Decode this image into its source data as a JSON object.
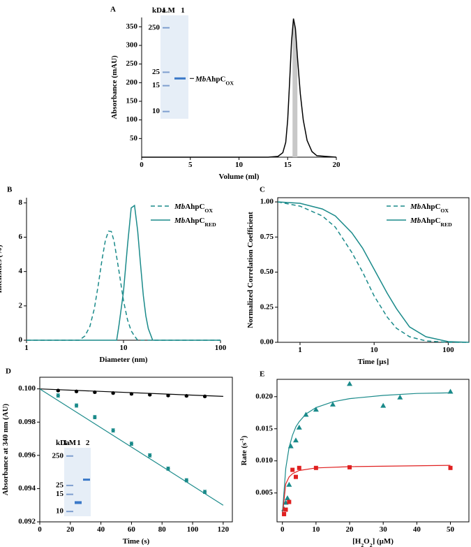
{
  "chart_data": [
    {
      "type": "line",
      "title": "A",
      "xlabel": "Volume (ml)",
      "ylabel": "Absorbance (mAU)",
      "xlim": [
        0,
        20
      ],
      "ylim": [
        0,
        375
      ],
      "xticks": [
        0,
        5,
        10,
        15,
        20
      ],
      "yticks": [
        50,
        100,
        150,
        200,
        250,
        300,
        350
      ],
      "frame": "axes",
      "highlight": [
        15.5,
        16
      ],
      "series": [
        {
          "color": "#000000",
          "x": [
            0,
            13,
            14,
            14.5,
            14.8,
            15,
            15.2,
            15.4,
            15.6,
            15.8,
            16,
            16.3,
            16.6,
            17,
            17.5,
            18,
            20
          ],
          "values": [
            0,
            0,
            2,
            12,
            40,
            100,
            200,
            310,
            372,
            345,
            270,
            170,
            100,
            45,
            15,
            4,
            0
          ]
        }
      ],
      "inset": {
        "labels": [
          "kDa",
          "LM",
          "1"
        ],
        "markers": [
          "250",
          "25",
          "15",
          "10"
        ],
        "annotation": [
          "Mb",
          "AhpC",
          "OX"
        ]
      }
    },
    {
      "type": "line",
      "title": "B",
      "xlabel": "Diameter (nm)",
      "ylabel": "Intensities (%)",
      "xscale": "log",
      "xlim": [
        1,
        100
      ],
      "ylim": [
        0,
        8.3
      ],
      "xticks": [
        1,
        10,
        100
      ],
      "yticks": [
        0,
        2,
        4,
        6,
        8
      ],
      "frame": "axes",
      "legend": "upper right",
      "series": [
        {
          "name": [
            "Mb",
            "AhpC",
            "OX"
          ],
          "color": "#1a8a8a",
          "dash": true,
          "x": [
            1,
            3.5,
            4,
            4.5,
            5,
            5.5,
            6,
            6.5,
            7,
            7.5,
            8,
            9,
            10,
            11,
            12,
            13,
            14,
            100
          ],
          "values": [
            0,
            0,
            0.25,
            0.8,
            1.84,
            3.24,
            4.69,
            5.81,
            6.35,
            6.33,
            5.76,
            4.0,
            2.3,
            1.18,
            0.55,
            0.24,
            0,
            0
          ]
        },
        {
          "name": [
            "Mb",
            "AhpC",
            "RED"
          ],
          "color": "#1a8a8a",
          "dash": false,
          "x": [
            1,
            8.5,
            9,
            10,
            11,
            12,
            13,
            14,
            15,
            16,
            17,
            18,
            20,
            100
          ],
          "values": [
            0,
            0,
            0.9,
            2.85,
            5.55,
            7.7,
            7.85,
            6.37,
            4.37,
            2.6,
            1.42,
            0.68,
            0,
            0
          ]
        }
      ]
    },
    {
      "type": "line",
      "title": "C",
      "xlabel": "Time [μs]",
      "ylabel": "Normalized Correlation Coefficient",
      "xscale": "log",
      "xlim": [
        0.5,
        190
      ],
      "ylim": [
        0,
        1.03
      ],
      "xticks": [
        1,
        10,
        100
      ],
      "yticks": [
        {
          "value": 0,
          "label": "0.00"
        },
        0.25,
        {
          "value": 0.5,
          "label": "0.50"
        },
        0.75,
        {
          "value": 1,
          "label": "1.00"
        }
      ],
      "frame": "box",
      "legend": "upper right",
      "series": [
        {
          "name": [
            "Mb",
            "AhpC",
            "OX"
          ],
          "color": "#1a8a8a",
          "dash": true,
          "x": [
            0.5,
            1,
            2,
            3,
            5,
            7,
            10,
            15,
            20,
            30,
            50,
            100,
            190
          ],
          "values": [
            1.0,
            0.97,
            0.9,
            0.82,
            0.64,
            0.5,
            0.33,
            0.18,
            0.1,
            0.04,
            0.01,
            0,
            0
          ]
        },
        {
          "name": [
            "Mb",
            "AhpC",
            "RED"
          ],
          "color": "#1a8a8a",
          "dash": false,
          "x": [
            0.5,
            1,
            2,
            3,
            5,
            7,
            10,
            15,
            20,
            30,
            50,
            100,
            190
          ],
          "values": [
            1.0,
            0.99,
            0.95,
            0.9,
            0.78,
            0.67,
            0.52,
            0.35,
            0.24,
            0.11,
            0.04,
            0.005,
            0
          ]
        }
      ]
    },
    {
      "type": "scatter",
      "title": "D",
      "xlabel": "Time (s)",
      "ylabel": "Absorbance at 340 nm (AU)",
      "xlim": [
        0,
        126
      ],
      "ylim": [
        0.092,
        0.1007
      ],
      "xticks": [
        0,
        20,
        40,
        60,
        80,
        100,
        120
      ],
      "yticks": [
        0.092,
        0.094,
        0.096,
        0.098,
        {
          "value": 0.1,
          "label": "0.100"
        }
      ],
      "frame": "box",
      "series": [
        {
          "color": "#000000",
          "marker": "circle",
          "x": [
            12,
            24,
            36,
            48,
            60,
            72,
            84,
            96,
            108
          ],
          "values": [
            0.0999,
            0.09985,
            0.0998,
            0.09975,
            0.0997,
            0.09965,
            0.0996,
            0.09958,
            0.09955
          ],
          "errors": [
            5e-05,
            5e-05,
            5e-05,
            5e-05,
            5e-05,
            5e-05,
            5e-05,
            5e-05,
            5e-05
          ],
          "fit": {
            "x": [
              0,
              120
            ],
            "values": [
              0.1,
              0.09955
            ]
          }
        },
        {
          "color": "#1a8a8a",
          "marker": "circle",
          "x": [
            12,
            24,
            36,
            48,
            60,
            72,
            84,
            96,
            108
          ],
          "values": [
            0.0996,
            0.099,
            0.0983,
            0.0975,
            0.0967,
            0.096,
            0.0952,
            0.0945,
            0.0938
          ],
          "errors": [
            0.0001,
            0.0001,
            0.0001,
            0.0001,
            0.0001,
            0.0001,
            0.0001,
            0.0001,
            0.0001
          ],
          "fit": {
            "x": [
              0,
              120
            ],
            "values": [
              0.1,
              0.093
            ]
          }
        }
      ],
      "inset": {
        "labels": [
          "kDa",
          "LM",
          "1",
          "2"
        ],
        "markers": [
          "250",
          "25",
          "15",
          "10"
        ]
      }
    },
    {
      "type": "scatter",
      "title": "E",
      "xlabel": [
        "[H",
        "2",
        "O",
        "2",
        "] (μM)"
      ],
      "ylabel": [
        "Rate (s",
        "-1",
        ")"
      ],
      "xlim": [
        -1.6,
        55.5
      ],
      "ylim": [
        0.0005,
        0.0227
      ],
      "xticks": [
        0,
        10,
        20,
        30,
        40,
        50
      ],
      "yticks": [
        0.005,
        {
          "value": 0.01,
          "label": "0.010"
        },
        0.015,
        {
          "value": 0.02,
          "label": "0.020"
        }
      ],
      "frame": "box",
      "series": [
        {
          "color": "#1a8a8a",
          "marker": "triangle",
          "x": [
            0.5,
            1,
            1.5,
            2,
            2.5,
            4,
            5,
            7,
            10,
            15,
            20,
            30,
            35,
            50
          ],
          "values": [
            0.0025,
            0.0035,
            0.0042,
            0.0063,
            0.0123,
            0.0132,
            0.0152,
            0.0172,
            0.018,
            0.0188,
            0.022,
            0.0186,
            0.0199,
            0.0208
          ],
          "fit": {
            "x": [
              0,
              1,
              2,
              3,
              4,
              5,
              7,
              10,
              15,
              20,
              30,
              40,
              50
            ],
            "values": [
              0.0018,
              0.0088,
              0.0121,
              0.014,
              0.0153,
              0.0161,
              0.0173,
              0.0183,
              0.0192,
              0.0197,
              0.0202,
              0.0205,
              0.0206
            ]
          }
        },
        {
          "color": "#e02020",
          "marker": "square",
          "x": [
            0.5,
            1,
            2,
            3,
            4,
            5,
            10,
            20,
            50
          ],
          "values": [
            0.0017,
            0.0024,
            0.0036,
            0.0086,
            0.0075,
            0.0089,
            0.0089,
            0.009,
            0.0089
          ],
          "fit": {
            "x": [
              0,
              1,
              2,
              3,
              5,
              10,
              20,
              50
            ],
            "values": [
              0.0015,
              0.0064,
              0.0075,
              0.008,
              0.0085,
              0.0089,
              0.0091,
              0.0093
            ]
          }
        }
      ]
    }
  ]
}
